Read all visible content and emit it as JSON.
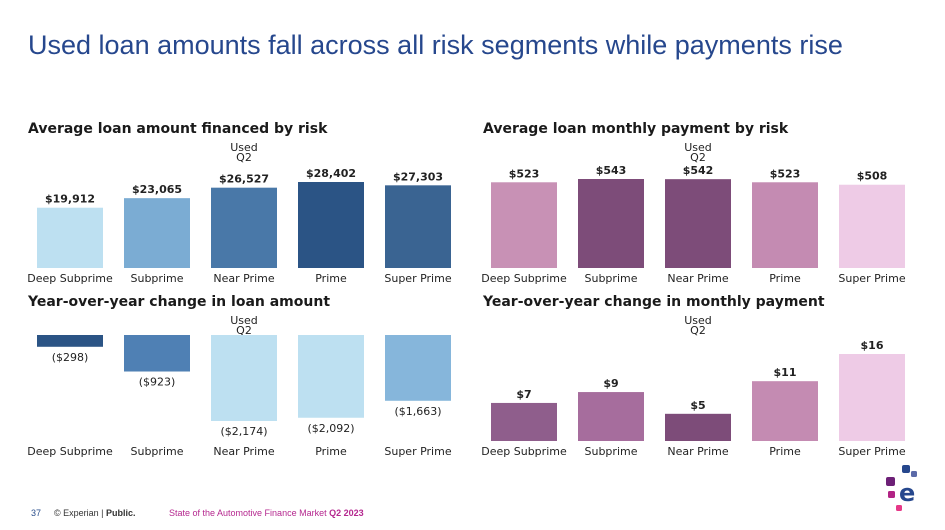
{
  "page": {
    "title": "Used loan amounts fall across all risk segments while payments rise",
    "footer": {
      "page_number": "37",
      "copyright": "© Experian | ",
      "classification": "Public.",
      "report": "State of the Automotive Finance Market ",
      "period": "Q2 2023"
    },
    "colors": {
      "title": "#26478d",
      "footer_magenta": "#b5288f"
    }
  },
  "panels": {
    "loan_amount": {
      "title": "Average loan amount financed by risk",
      "header_line1": "Used",
      "header_line2": "Q2"
    },
    "monthly_payment": {
      "title": "Average loan monthly payment by risk",
      "header_line1": "Used",
      "header_line2": "Q2"
    },
    "yoy_loan": {
      "title": "Year-over-year change in loan amount",
      "header_line1": "Used",
      "header_line2": "Q2"
    },
    "yoy_payment": {
      "title": "Year-over-year change in monthly payment",
      "header_line1": "Used",
      "header_line2": "Q2"
    }
  },
  "chart_data": [
    {
      "id": "loan_amount",
      "type": "bar",
      "title": "Average loan amount financed by risk",
      "categories": [
        "Deep Subprime",
        "Subprime",
        "Near Prime",
        "Prime",
        "Super Prime"
      ],
      "values": [
        19912,
        23065,
        26527,
        28402,
        27303
      ],
      "labels": [
        "$19,912",
        "$23,065",
        "$26,527",
        "$28,402",
        "$27,303"
      ],
      "colors": [
        "#bde0f1",
        "#7bacd3",
        "#4978a8",
        "#2b5485",
        "#3a6492"
      ],
      "ylim": [
        0,
        28402
      ]
    },
    {
      "id": "monthly_payment",
      "type": "bar",
      "title": "Average loan monthly payment by risk",
      "categories": [
        "Deep Subprime",
        "Subprime",
        "Near Prime",
        "Prime",
        "Super Prime"
      ],
      "values": [
        523,
        543,
        542,
        523,
        508
      ],
      "labels": [
        "$523",
        "$543",
        "$542",
        "$523",
        "$508"
      ],
      "colors": [
        "#c891b5",
        "#7d4c79",
        "#7d4c79",
        "#c48bb2",
        "#eecbe6"
      ],
      "ylim": [
        0,
        543
      ]
    },
    {
      "id": "yoy_loan",
      "type": "bar",
      "title": "Year-over-year change in loan amount",
      "categories": [
        "Deep Subprime",
        "Subprime",
        "Near Prime",
        "Prime",
        "Super Prime"
      ],
      "values": [
        -298,
        -923,
        -2174,
        -2092,
        -1663
      ],
      "labels": [
        "($298)",
        "($923)",
        "($2,174)",
        "($2,092)",
        "($1,663)"
      ],
      "colors": [
        "#2b5485",
        "#4f80b4",
        "#bde0f1",
        "#bde0f1",
        "#86b6db"
      ],
      "ylim": [
        -2174,
        0
      ]
    },
    {
      "id": "yoy_payment",
      "type": "bar",
      "title": "Year-over-year change in monthly payment",
      "categories": [
        "Deep Subprime",
        "Subprime",
        "Near Prime",
        "Prime",
        "Super Prime"
      ],
      "values": [
        7,
        9,
        5,
        11,
        16
      ],
      "labels": [
        "$7",
        "$9",
        "$5",
        "$11",
        "$16"
      ],
      "colors": [
        "#8f5e8c",
        "#a66d9d",
        "#7d4c79",
        "#c48bb2",
        "#eecbe6"
      ],
      "ylim": [
        0,
        16
      ]
    }
  ]
}
